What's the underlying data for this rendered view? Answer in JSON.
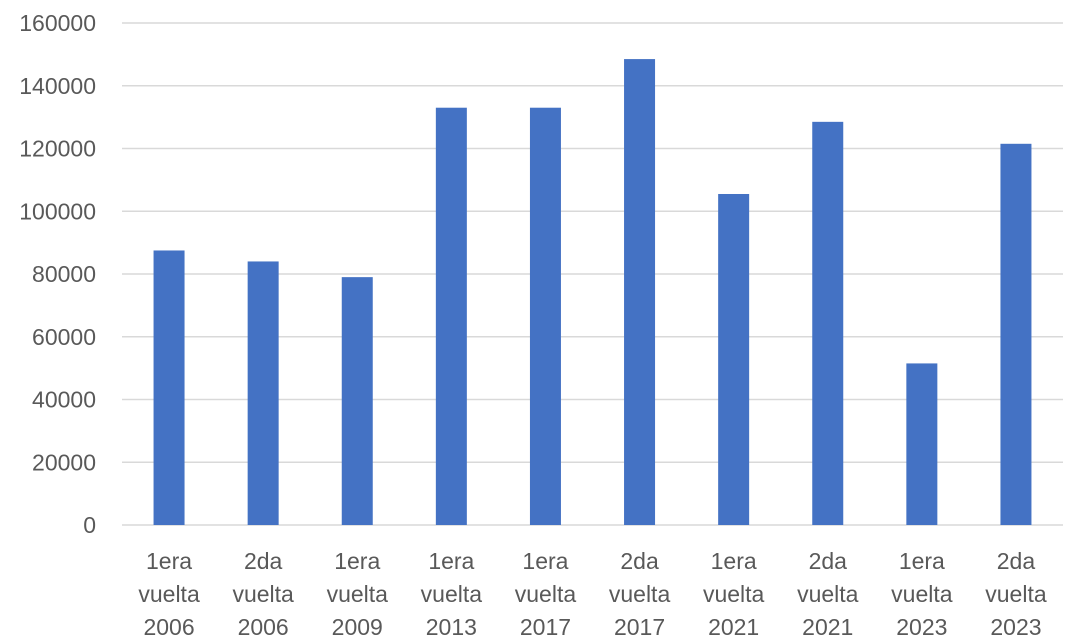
{
  "chart_data": {
    "type": "bar",
    "title": "",
    "xlabel": "",
    "ylabel": "",
    "ylim": [
      0,
      160000
    ],
    "yticks": [
      "0",
      "20000",
      "40000",
      "60000",
      "80000",
      "100000",
      "120000",
      "140000",
      "160000"
    ],
    "grid": true,
    "legend": "none",
    "categories": [
      [
        "1era",
        "vuelta",
        "2006"
      ],
      [
        "2da",
        "vuelta",
        "2006"
      ],
      [
        "1era",
        "vuelta",
        "2009"
      ],
      [
        "1era",
        "vuelta",
        "2013"
      ],
      [
        "1era",
        "vuelta",
        "2017"
      ],
      [
        "2da",
        "vuelta",
        "2017"
      ],
      [
        "1era",
        "vuelta",
        "2021"
      ],
      [
        "2da",
        "vuelta",
        "2021"
      ],
      [
        "1era",
        "vuelta",
        "2023"
      ],
      [
        "2da",
        "vuelta",
        "2023"
      ]
    ],
    "values": [
      87500,
      84000,
      79000,
      133000,
      133000,
      148500,
      105500,
      128500,
      51500,
      121500
    ],
    "colors": {
      "bar": "#4472C4",
      "grid": "#D9D9D9",
      "text": "#595959"
    }
  }
}
